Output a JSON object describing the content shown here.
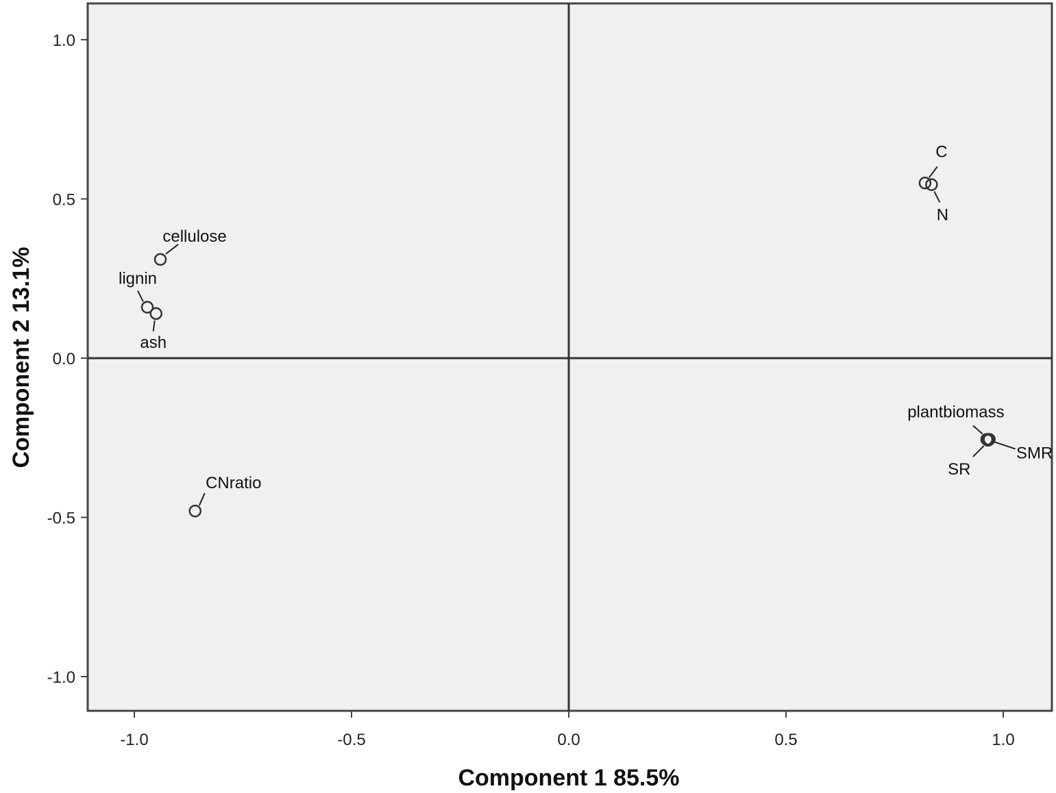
{
  "chart_data": {
    "type": "scatter",
    "xlabel": "Component 1  85.5%",
    "ylabel": "Component 2  13.1%",
    "xlim": [
      -1.1,
      1.1
    ],
    "ylim": [
      -1.1,
      1.1
    ],
    "xticks": [
      {
        "value": -1.0,
        "label": "-1.0"
      },
      {
        "value": -0.5,
        "label": "-0.5"
      },
      {
        "value": 0.0,
        "label": "0.0"
      },
      {
        "value": 0.5,
        "label": "0.5"
      },
      {
        "value": 1.0,
        "label": "1.0"
      }
    ],
    "yticks": [
      {
        "value": 1.0,
        "label": "1.0"
      },
      {
        "value": 0.5,
        "label": "0.5"
      },
      {
        "value": 0.0,
        "label": "0.0"
      },
      {
        "value": -0.5,
        "label": "-0.5"
      },
      {
        "value": -1.0,
        "label": "-1.0"
      }
    ],
    "reference_lines": {
      "x": 0,
      "y": 0
    },
    "grid": false,
    "background": "#f0f0f0",
    "marker_color": "#333333",
    "points": [
      {
        "label": "cellulose",
        "x": -0.94,
        "y": 0.31
      },
      {
        "label": "lignin",
        "x": -0.97,
        "y": 0.16
      },
      {
        "label": "ash",
        "x": -0.95,
        "y": 0.14
      },
      {
        "label": "CNratio",
        "x": -0.86,
        "y": -0.48
      },
      {
        "label": "C",
        "x": 0.82,
        "y": 0.55
      },
      {
        "label": "N",
        "x": 0.835,
        "y": 0.545
      },
      {
        "label": "plantbiomass",
        "x": 0.962,
        "y": -0.255
      },
      {
        "label": "SMR",
        "x": 0.968,
        "y": -0.255
      },
      {
        "label": "SR",
        "x": 0.965,
        "y": -0.258
      }
    ]
  }
}
